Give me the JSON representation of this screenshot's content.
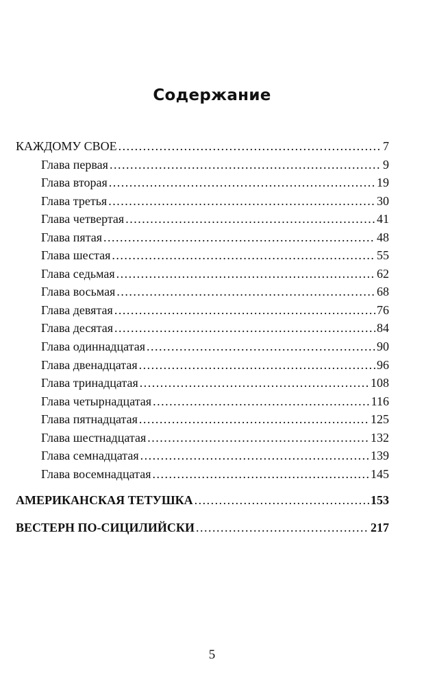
{
  "title": "Содержание",
  "entries": [
    {
      "label": "КАЖДОМУ СВОЕ",
      "page": "7",
      "level": "part"
    },
    {
      "label": "Глава первая",
      "page": "9",
      "level": "chapter"
    },
    {
      "label": "Глава вторая",
      "page": "19",
      "level": "chapter"
    },
    {
      "label": "Глава третья",
      "page": "30",
      "level": "chapter"
    },
    {
      "label": "Глава четвертая",
      "page": "41",
      "level": "chapter"
    },
    {
      "label": "Глава пятая",
      "page": "48",
      "level": "chapter"
    },
    {
      "label": "Глава шестая",
      "page": "55",
      "level": "chapter"
    },
    {
      "label": "Глава седьмая",
      "page": "62",
      "level": "chapter"
    },
    {
      "label": "Глава восьмая",
      "page": "68",
      "level": "chapter"
    },
    {
      "label": "Глава девятая",
      "page": "76",
      "level": "chapter"
    },
    {
      "label": "Глава десятая",
      "page": "84",
      "level": "chapter"
    },
    {
      "label": "Глава одиннадцатая",
      "page": "90",
      "level": "chapter"
    },
    {
      "label": "Глава двенадцатая",
      "page": "96",
      "level": "chapter"
    },
    {
      "label": "Глава тринадцатая",
      "page": "108",
      "level": "chapter"
    },
    {
      "label": "Глава четырнадцатая",
      "page": "116",
      "level": "chapter"
    },
    {
      "label": "Глава пятнадцатая",
      "page": "125",
      "level": "chapter"
    },
    {
      "label": "Глава шестнадцатая",
      "page": "132",
      "level": "chapter"
    },
    {
      "label": "Глава семнадцатая",
      "page": "139",
      "level": "chapter"
    },
    {
      "label": "Глава восемнадцатая",
      "page": "145",
      "level": "chapter"
    },
    {
      "label": "АМЕРИКАНСКАЯ ТЕТУШКА",
      "page": "153",
      "level": "part-bold"
    },
    {
      "label": "ВЕСТЕРН ПО-СИЦИЛИЙСКИ",
      "page": "217",
      "level": "part-bold"
    }
  ],
  "page_number": "5"
}
